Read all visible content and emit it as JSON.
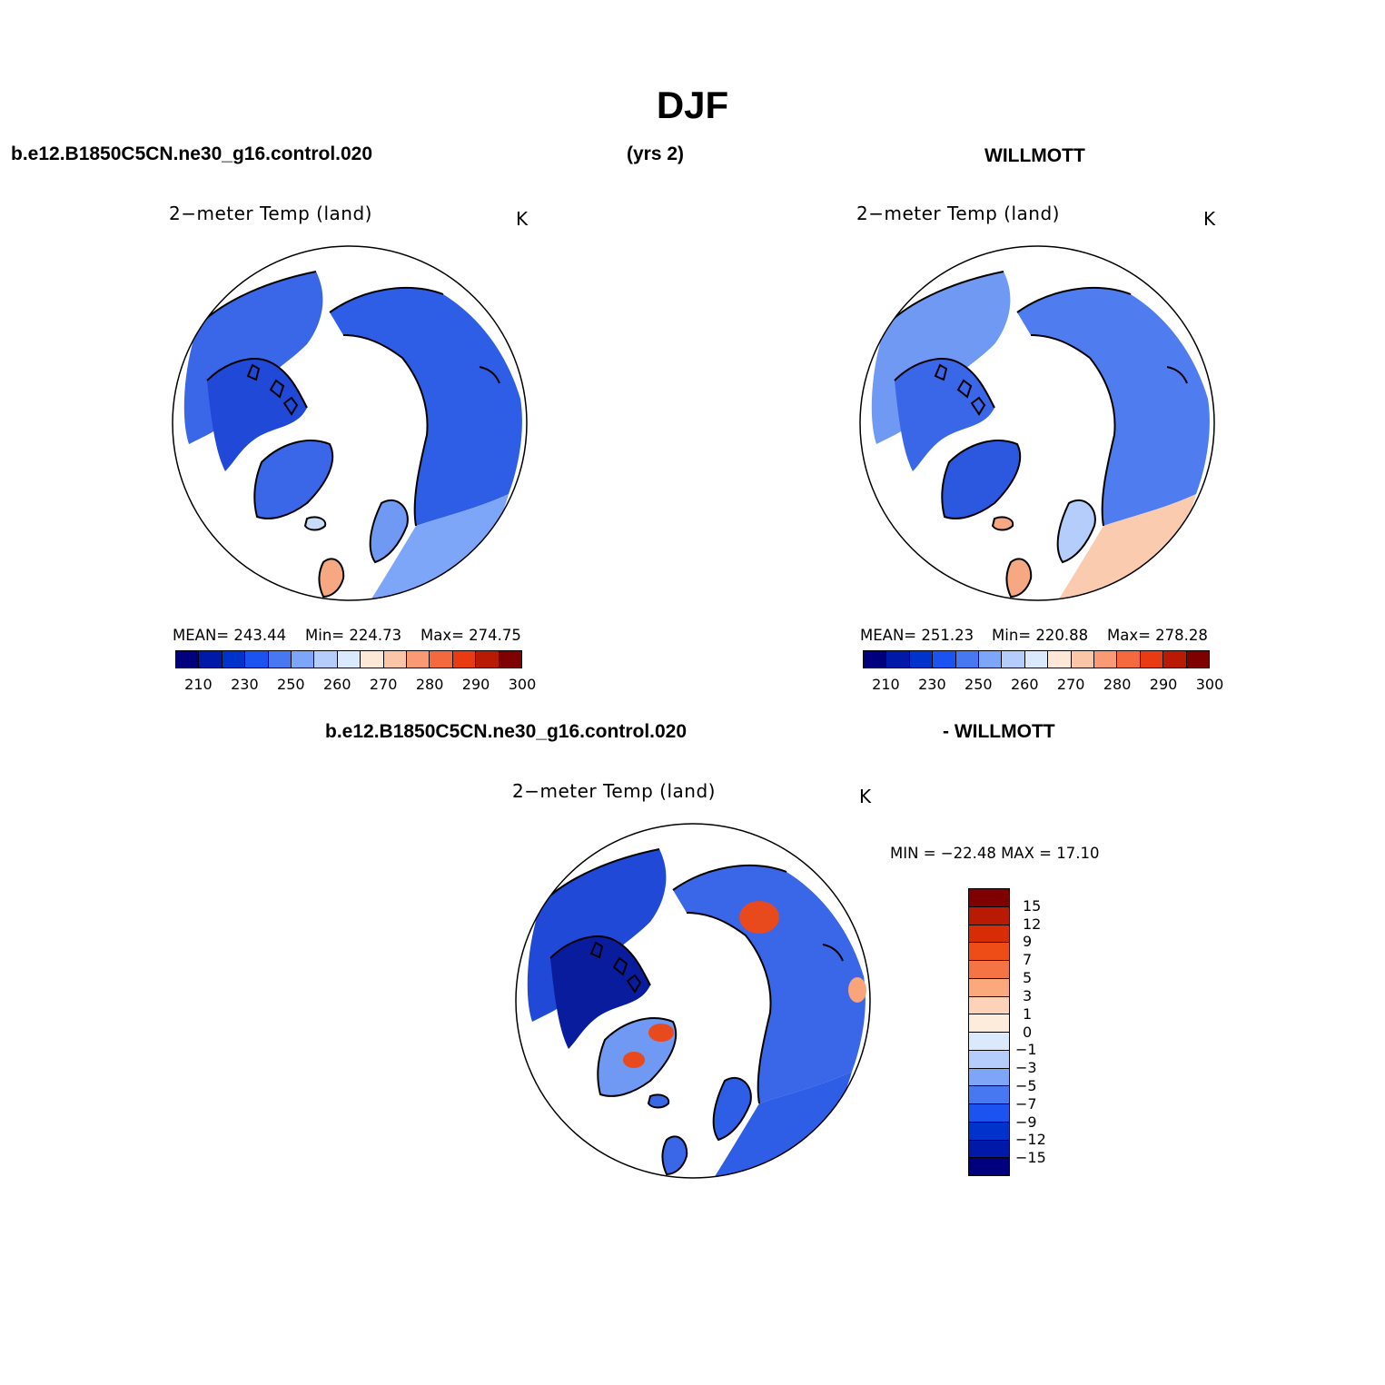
{
  "title": "DJF",
  "header": {
    "case": "b.e12.B1850C5CN.ne30_g16.control.020",
    "years": "(yrs 2)",
    "obs": "WILLMOTT"
  },
  "diff_header": {
    "case": "b.e12.B1850C5CN.ne30_g16.control.020",
    "obs": "- WILLMOTT"
  },
  "panels": {
    "model": {
      "title": "2−meter Temp (land)",
      "units": "K",
      "mean": "MEAN= 243.44",
      "min": "Min= 224.73",
      "max": "Max= 274.75"
    },
    "obs": {
      "title": "2−meter Temp (land)",
      "units": "K",
      "mean": "MEAN= 251.23",
      "min": "Min= 220.88",
      "max": "Max= 278.28"
    },
    "diff": {
      "title": "2−meter Temp (land)",
      "units": "K",
      "minmax": "MIN = −22.48 MAX =   17.10"
    }
  },
  "abs_colorbar": {
    "colors": [
      "#00007f",
      "#0019a8",
      "#0033cc",
      "#1a53f0",
      "#4877f2",
      "#7ea6f8",
      "#b4cdfa",
      "#dbe9fc",
      "#fde8d8",
      "#fbc6a8",
      "#f99a74",
      "#f46a3e",
      "#e83b12",
      "#b81a04",
      "#7f0000"
    ],
    "labels": [
      "210",
      "230",
      "250",
      "260",
      "270",
      "280",
      "290",
      "300"
    ]
  },
  "diff_colorbar": {
    "colors": [
      "#7f0000",
      "#b81a04",
      "#d72c05",
      "#ef4d18",
      "#f57445",
      "#fba97c",
      "#fcd3b8",
      "#fdebdc",
      "#dbe9fc",
      "#b4cdfa",
      "#7ea6f8",
      "#4877f2",
      "#1a53f0",
      "#0033cc",
      "#0019a8",
      "#00007f"
    ],
    "labels": [
      "15",
      "12",
      "9",
      "7",
      "5",
      "3",
      "1",
      "0",
      "−1",
      "−3",
      "−5",
      "−7",
      "−9",
      "−12",
      "−15"
    ]
  },
  "map_colors": {
    "model": {
      "nam": "#3a66e8",
      "can": "#1f49d6",
      "eur": "#2f5ee6",
      "eur_s": "#7ea6f8",
      "sca": "#6f99f2",
      "gre": "#3a66e8",
      "uk": "#f5a882",
      "ice": "#c8dcfa"
    },
    "obs": {
      "nam": "#6f99f2",
      "can": "#3a66e8",
      "eur": "#4f7cef",
      "eur_s": "#fbcbaf",
      "sca": "#b4cdfa",
      "gre": "#2c58df",
      "uk": "#f5a882",
      "ice": "#f5a882"
    },
    "diff": {
      "nam": "#1f49d6",
      "can": "#0a1c9e",
      "eur": "#3a66e8",
      "eur_s": "#2f5ee6",
      "sca": "#2f5ee6",
      "gre": "#6f99f2",
      "uk": "#3a66e8",
      "ice": "#3a66e8",
      "hot": "#e84a1e"
    }
  }
}
